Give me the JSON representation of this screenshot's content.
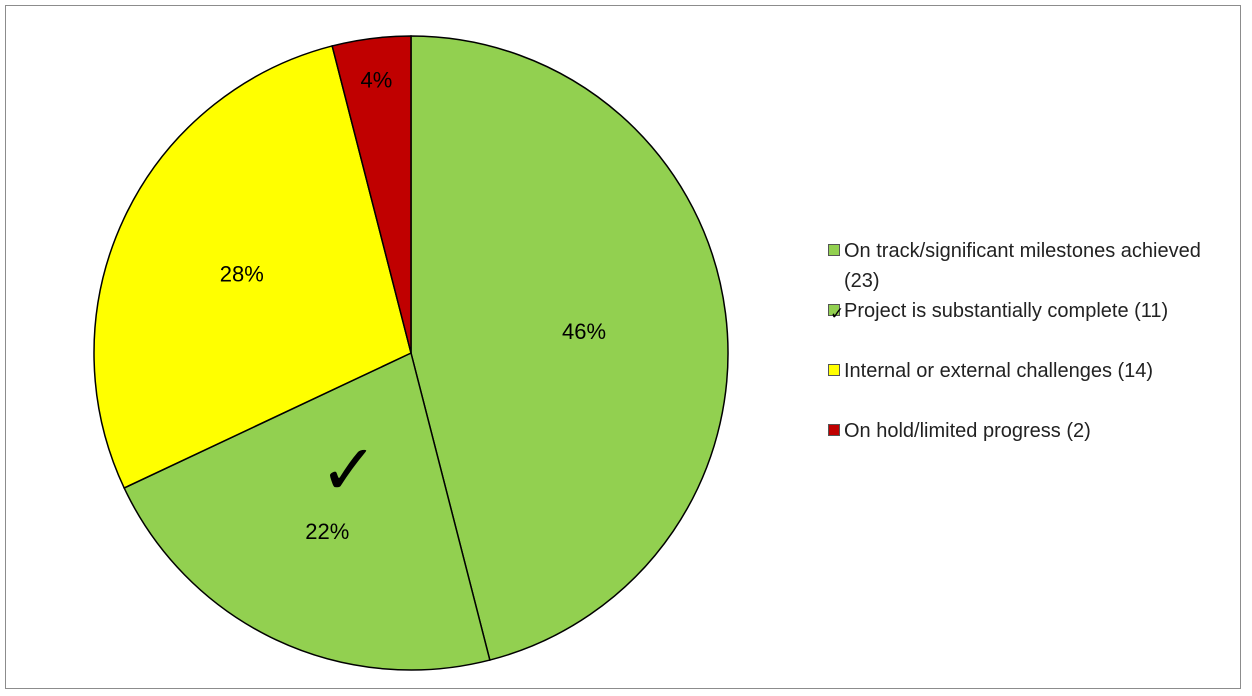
{
  "chart_data": {
    "type": "pie",
    "start_angle_deg": 0,
    "direction": "clockwise",
    "slices": [
      {
        "label": "On track/significant milestones achieved (23)",
        "value": 23,
        "percent_label": "46%",
        "color": "#92d050",
        "check": false
      },
      {
        "label": "Project is substantially complete (11)",
        "value": 11,
        "percent_label": "22%",
        "color": "#92d050",
        "check": true
      },
      {
        "label": "Internal or external challenges (14)",
        "value": 14,
        "percent_label": "28%",
        "color": "#ffff00",
        "check": false
      },
      {
        "label": "On hold/limited progress (2)",
        "value": 2,
        "percent_label": "4%",
        "color": "#c00000",
        "check": false
      }
    ],
    "legend_placement": "right",
    "check_mark": "✓"
  }
}
